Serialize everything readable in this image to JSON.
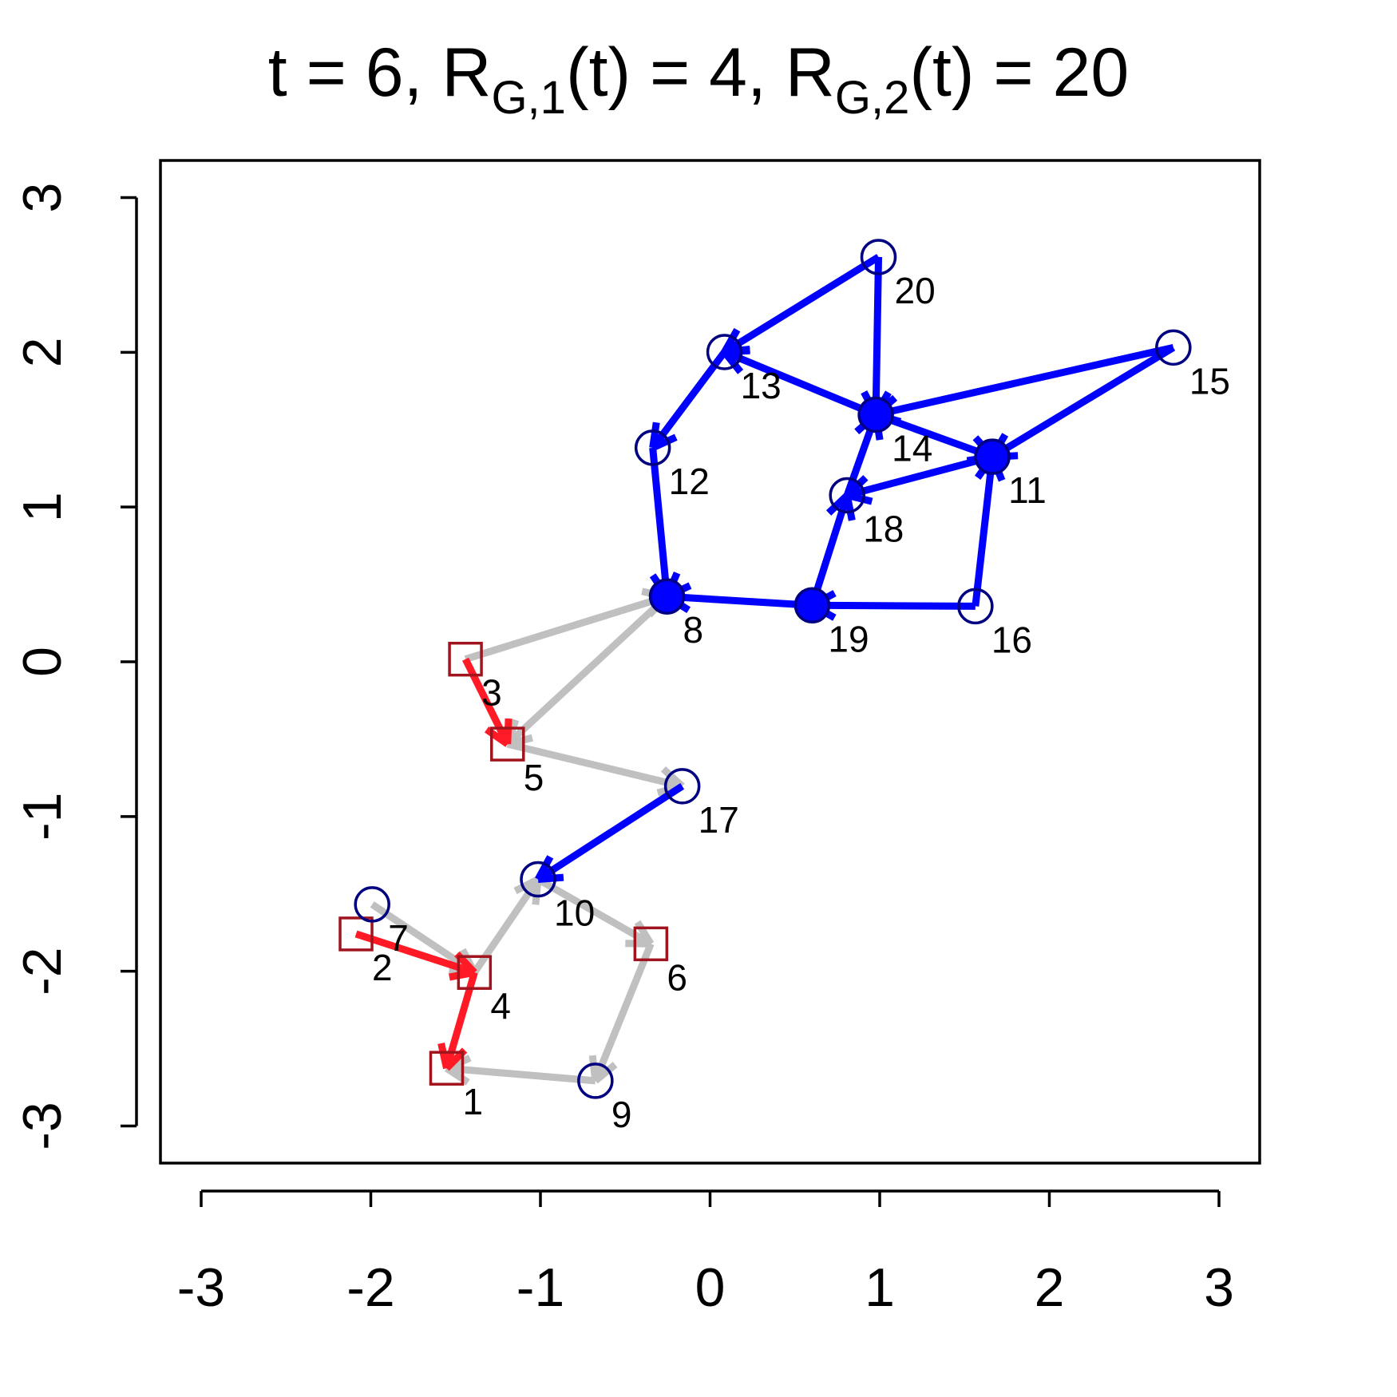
{
  "chart_data": {
    "type": "network",
    "title": [
      {
        "text": "t = 6, R"
      },
      {
        "text": "G,1",
        "sub": true
      },
      {
        "text": "(t) = 4, R"
      },
      {
        "text": "G,2",
        "sub": true
      },
      {
        "text": "(t) = 20"
      }
    ],
    "xlim": [
      -3.24,
      3.24
    ],
    "ylim": [
      -3.24,
      3.24
    ],
    "xticks": [
      -3,
      -2,
      -1,
      0,
      1,
      2,
      3
    ],
    "yticks": [
      -3,
      -2,
      -1,
      0,
      1,
      2,
      3
    ],
    "node_styles": {
      "square": {
        "shape": "square",
        "color": "#a0141e"
      },
      "circle": {
        "shape": "circle",
        "color": "#000080"
      }
    },
    "fill_color": "#0000ff",
    "nodes": [
      {
        "label": "1",
        "x": -1.553,
        "y": -2.627,
        "style": "square",
        "filled": false
      },
      {
        "label": "2",
        "x": -2.087,
        "y": -1.759,
        "style": "square",
        "filled": false
      },
      {
        "label": "3",
        "x": -1.442,
        "y": 0.017,
        "style": "square",
        "filled": false
      },
      {
        "label": "4",
        "x": -1.389,
        "y": -2.008,
        "style": "square",
        "filled": false
      },
      {
        "label": "5",
        "x": -1.194,
        "y": -0.532,
        "style": "square",
        "filled": false
      },
      {
        "label": "6",
        "x": -0.349,
        "y": -1.823,
        "style": "square",
        "filled": false
      },
      {
        "label": "7",
        "x": -1.992,
        "y": -1.568,
        "style": "circle",
        "filled": false
      },
      {
        "label": "8",
        "x": -0.254,
        "y": 0.422,
        "style": "circle",
        "filled": true
      },
      {
        "label": "9",
        "x": -0.676,
        "y": -2.708,
        "style": "circle",
        "filled": false
      },
      {
        "label": "10",
        "x": -1.014,
        "y": -1.406,
        "style": "circle",
        "filled": false
      },
      {
        "label": "11",
        "x": 1.664,
        "y": 1.325,
        "style": "circle",
        "filled": true
      },
      {
        "label": "12",
        "x": -0.338,
        "y": 1.383,
        "style": "circle",
        "filled": false
      },
      {
        "label": "13",
        "x": 0.085,
        "y": 2.002,
        "style": "circle",
        "filled": false
      },
      {
        "label": "14",
        "x": 0.977,
        "y": 1.597,
        "style": "circle",
        "filled": true
      },
      {
        "label": "15",
        "x": 2.731,
        "y": 2.031,
        "style": "circle",
        "filled": false
      },
      {
        "label": "16",
        "x": 1.564,
        "y": 0.359,
        "style": "circle",
        "filled": false
      },
      {
        "label": "17",
        "x": -0.164,
        "y": -0.804,
        "style": "circle",
        "filled": false
      },
      {
        "label": "18",
        "x": 0.808,
        "y": 1.076,
        "style": "circle",
        "filled": false
      },
      {
        "label": "19",
        "x": 0.602,
        "y": 0.365,
        "style": "circle",
        "filled": true
      },
      {
        "label": "20",
        "x": 0.993,
        "y": 2.616,
        "style": "circle",
        "filled": false
      }
    ],
    "edges": [
      {
        "from": 2,
        "to": 7,
        "color": "#c0c0c0"
      },
      {
        "from": 7,
        "to": 4,
        "color": "#c0c0c0"
      },
      {
        "from": 4,
        "to": 16,
        "color": "#c0c0c0"
      },
      {
        "from": 6,
        "to": 3,
        "color": "#c0c0c0"
      },
      {
        "from": 3,
        "to": 9,
        "color": "#c0c0c0"
      },
      {
        "from": 9,
        "to": 5,
        "color": "#c0c0c0"
      },
      {
        "from": 5,
        "to": 8,
        "color": "#c0c0c0"
      },
      {
        "from": 8,
        "to": 0,
        "color": "#c0c0c0"
      },
      {
        "from": 2,
        "to": 4,
        "color": "#ff1a26"
      },
      {
        "from": 1,
        "to": 3,
        "color": "#ff1a26"
      },
      {
        "from": 3,
        "to": 0,
        "color": "#ff1a26"
      },
      {
        "from": 16,
        "to": 9,
        "color": "#0000ff"
      },
      {
        "from": 19,
        "to": 12,
        "color": "#0000ff"
      },
      {
        "from": 19,
        "to": 13,
        "color": "#0000ff"
      },
      {
        "from": 13,
        "to": 12,
        "color": "#0000ff"
      },
      {
        "from": 12,
        "to": 11,
        "color": "#0000ff"
      },
      {
        "from": 11,
        "to": 7,
        "color": "#0000ff"
      },
      {
        "from": 14,
        "to": 13,
        "color": "#0000ff"
      },
      {
        "from": 14,
        "to": 10,
        "color": "#0000ff"
      },
      {
        "from": 13,
        "to": 10,
        "color": "#0000ff"
      },
      {
        "from": 10,
        "to": 17,
        "color": "#0000ff"
      },
      {
        "from": 17,
        "to": 13,
        "color": "#0000ff"
      },
      {
        "from": 15,
        "to": 10,
        "color": "#0000ff"
      },
      {
        "from": 15,
        "to": 18,
        "color": "#0000ff"
      },
      {
        "from": 18,
        "to": 7,
        "color": "#0000ff"
      },
      {
        "from": 18,
        "to": 17,
        "color": "#0000ff"
      }
    ]
  }
}
